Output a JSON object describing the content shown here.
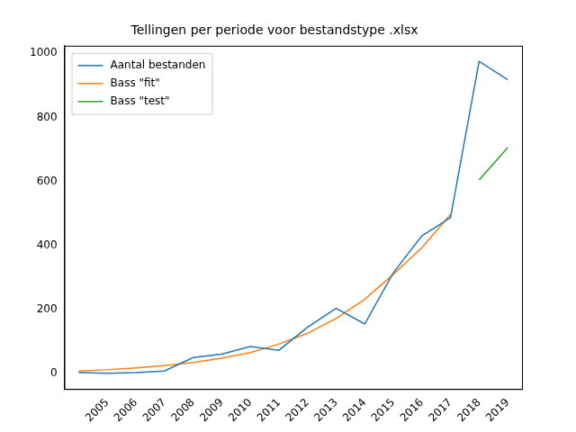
{
  "chart_data": {
    "type": "line",
    "title": "Tellingen per periode voor bestandstype .xlsx",
    "categories": [
      null,
      "2005",
      "2006",
      "2007",
      "2008",
      "2009",
      "2010",
      "2011",
      "2012",
      "2013",
      "2014",
      "2015",
      "2016",
      "2017",
      "2018",
      "2019"
    ],
    "series": [
      {
        "name": "Aantal bestanden",
        "color": "#1f77b4",
        "values": [
          3,
          1,
          3,
          8,
          50,
          61,
          85,
          73,
          145,
          204,
          155,
          315,
          430,
          487,
          975,
          918
        ]
      },
      {
        "name": "Bass \"fit\"",
        "color": "#ff7f0e",
        "values": [
          8,
          12,
          18,
          25,
          35,
          48,
          66,
          92,
          126,
          172,
          232,
          310,
          393,
          497,
          null,
          null
        ]
      },
      {
        "name": "Bass \"test\"",
        "color": "#2ca02c",
        "values": [
          null,
          null,
          null,
          null,
          null,
          null,
          null,
          null,
          null,
          null,
          null,
          null,
          null,
          null,
          605,
          706
        ]
      }
    ],
    "ylim": [
      -48,
      1024
    ],
    "yticks": [
      0,
      200,
      400,
      600,
      800,
      1000
    ],
    "grid": false,
    "legend": "upper left"
  }
}
